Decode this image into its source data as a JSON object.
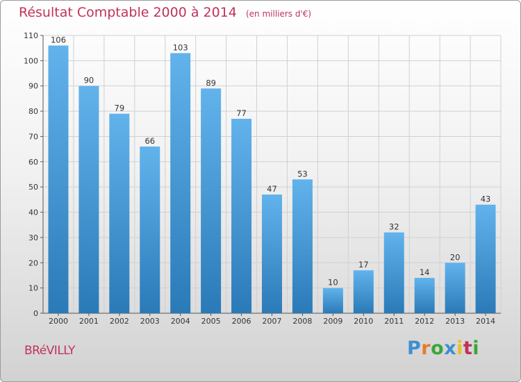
{
  "header": {
    "title": "Résultat Comptable 2000 à 2014",
    "unit": "(en milliers d'€)"
  },
  "footer": {
    "city": "BRéVILLY",
    "brand": "Proxiti",
    "brand_colors": [
      "#3d8fd1",
      "#e8792a",
      "#3aa63a",
      "#3d8fd1",
      "#e8c12a",
      "#c0325a",
      "#3aa63a"
    ]
  },
  "colors": {
    "title": "#c0325a",
    "bar_top": "#62b3ec",
    "bar_bottom": "#2a7ab8",
    "grid": "#d0d0d0"
  },
  "chart_data": {
    "type": "bar",
    "title": "Résultat Comptable 2000 à 2014",
    "subtitle": "(en milliers d'€)",
    "xlabel": "",
    "ylabel": "",
    "categories": [
      "2000",
      "2001",
      "2002",
      "2003",
      "2004",
      "2005",
      "2006",
      "2007",
      "2008",
      "2009",
      "2010",
      "2011",
      "2012",
      "2013",
      "2014"
    ],
    "values": [
      106,
      90,
      79,
      66,
      103,
      89,
      77,
      47,
      53,
      10,
      17,
      32,
      14,
      20,
      43
    ],
    "ylim": [
      0,
      110
    ],
    "yticks": [
      0,
      10,
      20,
      30,
      40,
      50,
      60,
      70,
      80,
      90,
      100,
      110
    ],
    "grid": true,
    "legend": "none"
  }
}
